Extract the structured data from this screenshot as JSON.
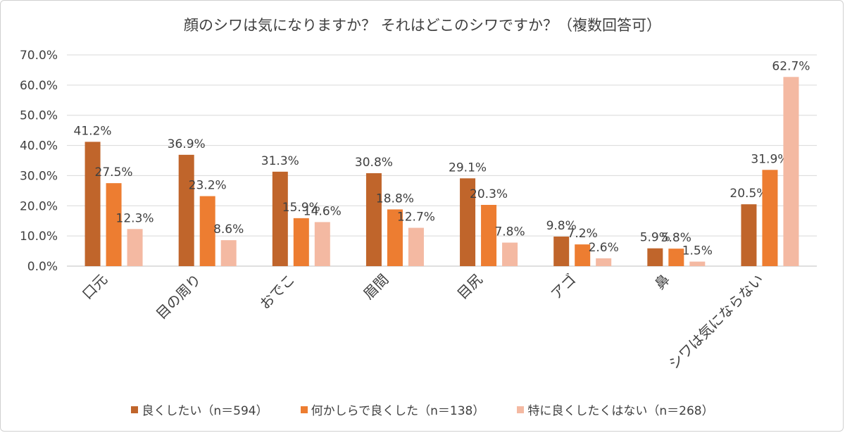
{
  "chart_data": {
    "type": "bar",
    "title": "顔のシワは気になりますか？ それはどこのシワですか？（複数回答可）",
    "categories": [
      "口元",
      "目の周り",
      "おでこ",
      "眉間",
      "目尻",
      "アゴ",
      "鼻",
      "シワは気にならない"
    ],
    "series": [
      {
        "name": "良くしたい（n＝594）",
        "color": "#c0652b",
        "values": [
          41.2,
          36.9,
          31.3,
          30.8,
          29.1,
          9.8,
          5.9,
          20.5
        ],
        "labels": [
          "41.2%",
          "36.9%",
          "31.3%",
          "30.8%",
          "29.1%",
          "9.8%",
          "5.9%",
          "20.5%"
        ]
      },
      {
        "name": "何かしらで良くした（n＝138）",
        "color": "#ed7d31",
        "values": [
          27.5,
          23.2,
          15.9,
          18.8,
          20.3,
          7.2,
          5.8,
          31.9
        ],
        "labels": [
          "27.5%",
          "23.2%",
          "15.9%",
          "18.8%",
          "20.3%",
          "7.2%",
          "5.8%",
          "31.9%"
        ]
      },
      {
        "name": "特に良くしたくはない（n＝268）",
        "color": "#f4b9a2",
        "values": [
          12.3,
          8.6,
          14.6,
          12.7,
          7.8,
          2.6,
          1.5,
          62.7
        ],
        "labels": [
          "12.3%",
          "8.6%",
          "14.6%",
          "12.7%",
          "7.8%",
          "2.6%",
          "1.5%",
          "62.7%"
        ]
      }
    ],
    "yticks": [
      "0.0%",
      "10.0%",
      "20.0%",
      "30.0%",
      "40.0%",
      "50.0%",
      "60.0%",
      "70.0%"
    ],
    "ylim": [
      0,
      70
    ],
    "xlabel": "",
    "ylabel": "",
    "grid": true,
    "legend_position": "bottom"
  }
}
